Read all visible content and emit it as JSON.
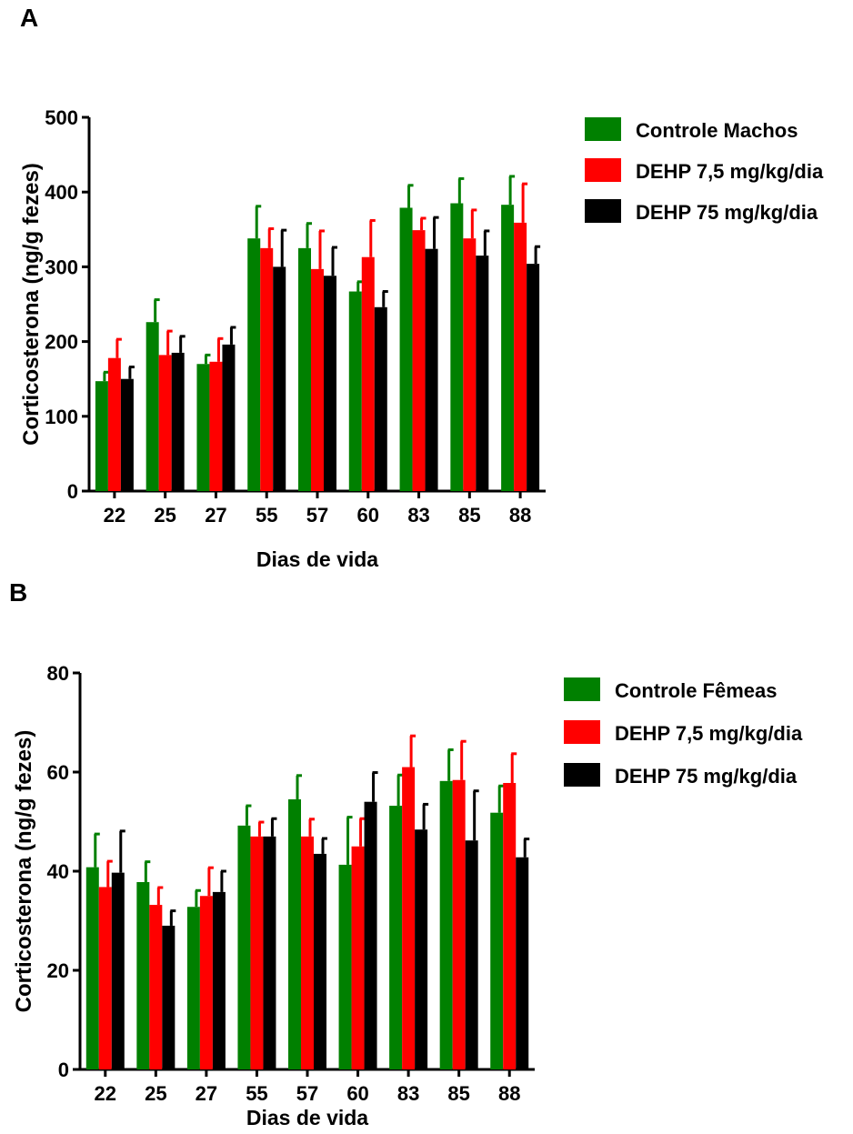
{
  "chart_data": [
    {
      "panel": "A",
      "type": "bar",
      "xlabel": "Dias de vida",
      "ylabel": "Corticosterona (ng/g fezes)",
      "ylim": [
        0,
        500
      ],
      "yticks": [
        0,
        100,
        200,
        300,
        400,
        500
      ],
      "categories": [
        "22",
        "25",
        "27",
        "55",
        "57",
        "60",
        "83",
        "85",
        "88"
      ],
      "legend_position": "top-right",
      "series": [
        {
          "name": "Controle Machos",
          "color": "#008000",
          "values": [
            147,
            226,
            170,
            338,
            325,
            267,
            379,
            385,
            383
          ],
          "errors": [
            12,
            30,
            12,
            43,
            33,
            13,
            30,
            33,
            38
          ]
        },
        {
          "name": "DEHP 7,5 mg/kg/dia",
          "color": "#ff0000",
          "values": [
            178,
            182,
            173,
            325,
            297,
            313,
            349,
            338,
            359
          ],
          "errors": [
            25,
            32,
            31,
            26,
            51,
            49,
            16,
            38,
            52
          ]
        },
        {
          "name": "DEHP 75 mg/kg/dia",
          "color": "#000000",
          "values": [
            150,
            185,
            196,
            300,
            288,
            246,
            324,
            315,
            304
          ],
          "errors": [
            16,
            22,
            23,
            49,
            38,
            21,
            42,
            33,
            23
          ]
        }
      ]
    },
    {
      "panel": "B",
      "type": "bar",
      "xlabel": "Dias de vida",
      "ylabel": "Corticosterona (ng/g fezes)",
      "ylim": [
        0,
        80
      ],
      "yticks": [
        0,
        20,
        40,
        60,
        80
      ],
      "categories": [
        "22",
        "25",
        "27",
        "55",
        "57",
        "60",
        "83",
        "85",
        "88"
      ],
      "legend_position": "top-right",
      "series": [
        {
          "name": "Controle Fêmeas",
          "color": "#008000",
          "values": [
            40.8,
            37.8,
            32.8,
            49.2,
            54.5,
            41.3,
            53.2,
            58.2,
            51.8
          ],
          "errors": [
            6.7,
            4.1,
            3.3,
            4.0,
            4.8,
            9.6,
            6.2,
            6.3,
            5.4
          ]
        },
        {
          "name": "DEHP 7,5 mg/kg/dia",
          "color": "#ff0000",
          "values": [
            36.8,
            33.2,
            35.0,
            47.0,
            47.0,
            45.0,
            61.0,
            58.4,
            57.8
          ],
          "errors": [
            5.2,
            3.5,
            5.7,
            2.9,
            3.5,
            5.6,
            6.3,
            7.8,
            5.9
          ]
        },
        {
          "name": "DEHP 75 mg/kg/dia",
          "color": "#000000",
          "values": [
            39.7,
            29.0,
            35.8,
            47.0,
            43.5,
            54.0,
            48.4,
            46.2,
            42.8
          ],
          "errors": [
            8.4,
            3.0,
            4.2,
            3.6,
            3.1,
            5.9,
            5.1,
            10.0,
            3.7
          ]
        }
      ]
    }
  ]
}
